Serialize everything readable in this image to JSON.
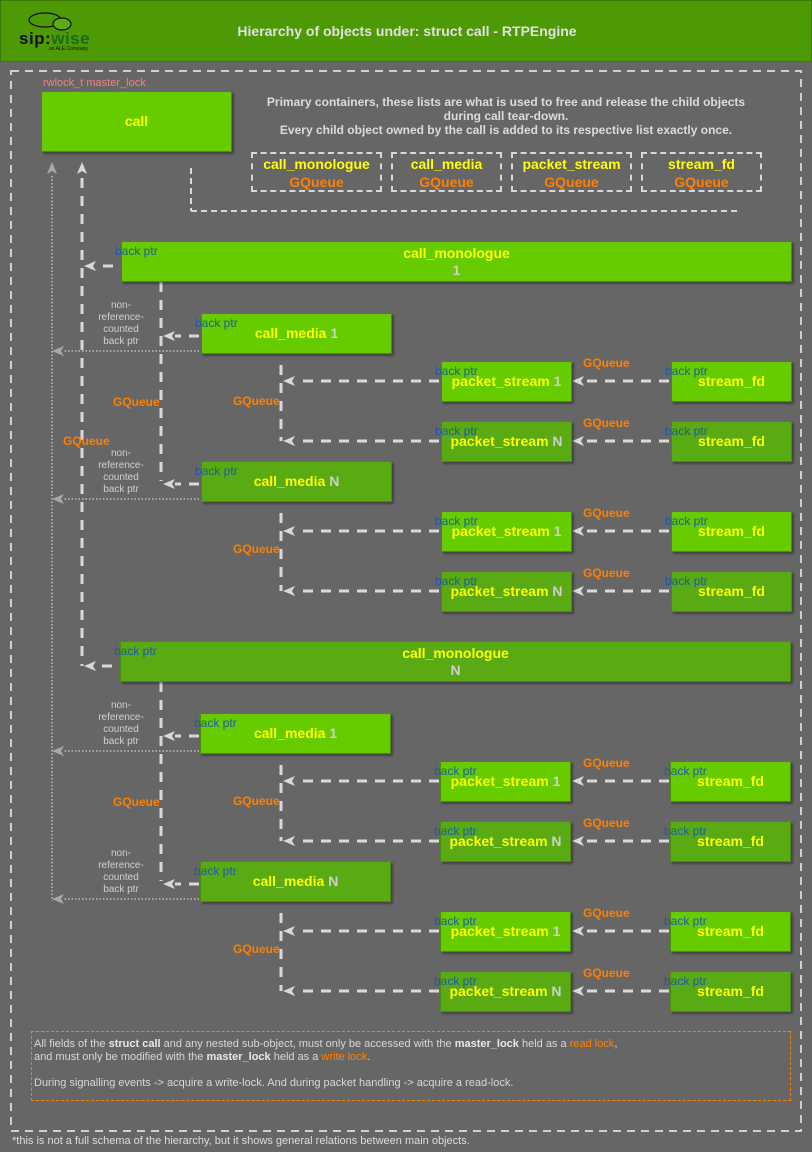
{
  "header": {
    "title": "Hierarchy of objects under: struct call - RTPEngine",
    "logo": {
      "text_a": "sip:",
      "text_b": "wise",
      "tagline": "an ALE Company"
    }
  },
  "call": {
    "lock_label": "rwlock_t master_lock",
    "label": "call"
  },
  "primary_note": [
    "Primary containers, these lists are what is used to free and release the child objects",
    "during call tear-down.",
    "Every child object owned by the call is added to its respective list exactly once."
  ],
  "containers": [
    {
      "name": "call_monologue",
      "type": "GQueue"
    },
    {
      "name": "call_media",
      "type": "GQueue"
    },
    {
      "name": "packet_stream",
      "type": "GQueue"
    },
    {
      "name": "stream_fd",
      "type": "GQueue"
    }
  ],
  "labels": {
    "back_ptr": "back ptr",
    "gqueue": "GQueue",
    "non_ref": [
      "non-",
      "reference-",
      "counted",
      "back ptr"
    ]
  },
  "monologues": [
    {
      "name": "call_monologue",
      "index": "1",
      "medias": [
        {
          "name": "call_media",
          "index": "1",
          "streams": [
            {
              "name": "packet_stream",
              "index": "1",
              "fd": "stream_fd"
            },
            {
              "name": "packet_stream",
              "index": "N",
              "fd": "stream_fd"
            }
          ]
        },
        {
          "name": "call_media",
          "index": "N",
          "streams": [
            {
              "name": "packet_stream",
              "index": "1",
              "fd": "stream_fd"
            },
            {
              "name": "packet_stream",
              "index": "N",
              "fd": "stream_fd"
            }
          ]
        }
      ]
    },
    {
      "name": "call_monologue",
      "index": "N",
      "medias": [
        {
          "name": "call_media",
          "index": "1",
          "streams": [
            {
              "name": "packet_stream",
              "index": "1",
              "fd": "stream_fd"
            },
            {
              "name": "packet_stream",
              "index": "N",
              "fd": "stream_fd"
            }
          ]
        },
        {
          "name": "call_media",
          "index": "N",
          "streams": [
            {
              "name": "packet_stream",
              "index": "1",
              "fd": "stream_fd"
            },
            {
              "name": "packet_stream",
              "index": "N",
              "fd": "stream_fd"
            }
          ]
        }
      ]
    }
  ],
  "lock_note": {
    "lines": [
      [
        {
          "t": "All fields of the "
        },
        {
          "t": "struct call",
          "s": "b"
        },
        {
          "t": " and any nested sub-object, must only be accessed with the "
        },
        {
          "t": "master_lock",
          "s": "b"
        },
        {
          "t": " held as a "
        },
        {
          "t": "read lock",
          "s": "o"
        },
        {
          "t": ","
        }
      ],
      [
        {
          "t": "and must only be modified with the "
        },
        {
          "t": "master_lock",
          "s": "b"
        },
        {
          "t": " held as a "
        },
        {
          "t": "write lock",
          "s": "o"
        },
        {
          "t": "."
        }
      ],
      [],
      [
        {
          "t": "During signalling events -> acquire a write-lock. And during packet handling -> acquire a read-lock."
        }
      ]
    ]
  },
  "footnote": "*this is not a full schema of the hierarchy, but it shows general relations between main objects.",
  "colors": {
    "header_bg": "#4e9a06",
    "box": "#66cc00",
    "box_dark": "#5aaa14",
    "label": "#ffff00",
    "back_ptr": "#1d5aa6",
    "gqueue": "#ff8000",
    "lock": "#f08080"
  }
}
